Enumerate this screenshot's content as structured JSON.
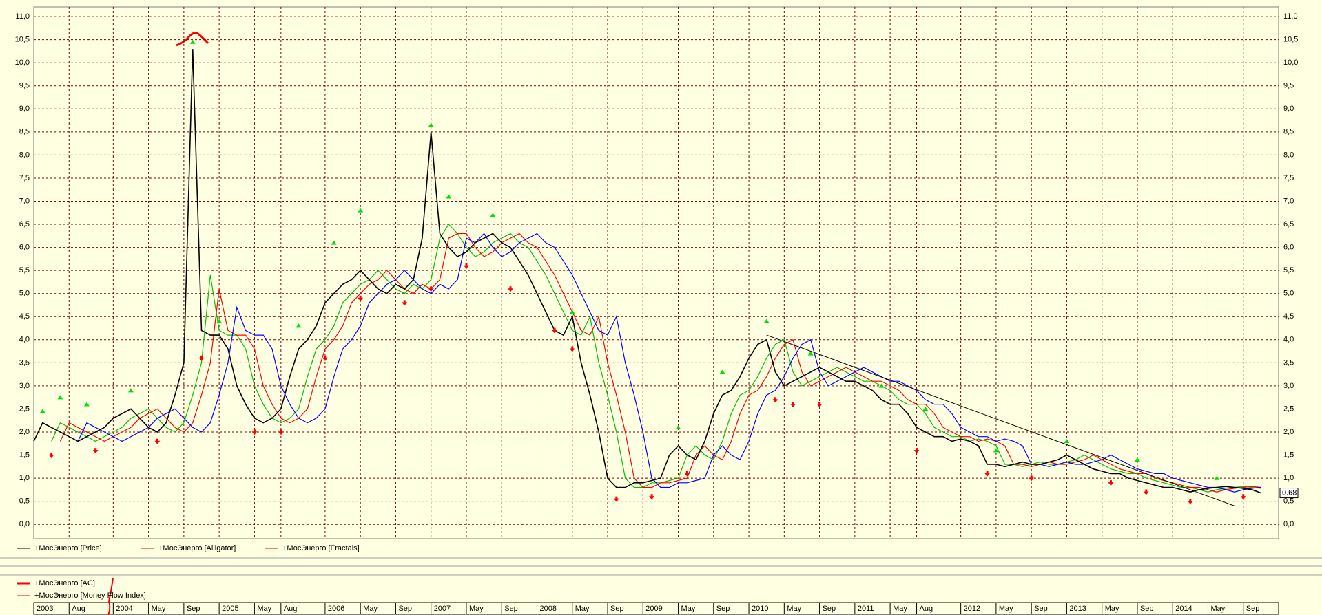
{
  "chart_data": {
    "type": "line",
    "x": [
      "2003-04",
      "2003-05",
      "2003-06",
      "2003-07",
      "2003-08",
      "2003-09",
      "2003-10",
      "2003-11",
      "2003-12",
      "2004-01",
      "2004-02",
      "2004-03",
      "2004-04",
      "2004-05",
      "2004-06",
      "2004-07",
      "2004-08",
      "2004-09",
      "2004-10",
      "2004-11",
      "2004-12",
      "2005-01",
      "2005-02",
      "2005-03",
      "2005-04",
      "2005-05",
      "2005-06",
      "2005-07",
      "2005-08",
      "2005-09",
      "2005-10",
      "2005-11",
      "2005-12",
      "2006-01",
      "2006-02",
      "2006-03",
      "2006-04",
      "2006-05",
      "2006-06",
      "2006-07",
      "2006-08",
      "2006-09",
      "2006-10",
      "2006-11",
      "2006-12",
      "2007-01",
      "2007-02",
      "2007-03",
      "2007-04",
      "2007-05",
      "2007-06",
      "2007-07",
      "2007-08",
      "2007-09",
      "2007-10",
      "2007-11",
      "2007-12",
      "2008-01",
      "2008-02",
      "2008-03",
      "2008-04",
      "2008-05",
      "2008-06",
      "2008-07",
      "2008-08",
      "2008-09",
      "2008-10",
      "2008-11",
      "2008-12",
      "2009-01",
      "2009-02",
      "2009-03",
      "2009-04",
      "2009-05",
      "2009-06",
      "2009-07",
      "2009-08",
      "2009-09",
      "2009-10",
      "2009-11",
      "2009-12",
      "2010-01",
      "2010-02",
      "2010-03",
      "2010-04",
      "2010-05",
      "2010-06",
      "2010-07",
      "2010-08",
      "2010-09",
      "2010-10",
      "2010-11",
      "2010-12",
      "2011-01",
      "2011-02",
      "2011-03",
      "2011-04",
      "2011-05",
      "2011-06",
      "2011-07",
      "2011-08",
      "2011-09",
      "2011-10",
      "2011-11",
      "2011-12",
      "2012-01",
      "2012-02",
      "2012-03",
      "2012-04",
      "2012-05",
      "2012-06",
      "2012-07",
      "2012-08",
      "2012-09",
      "2012-10",
      "2012-11",
      "2012-12",
      "2013-01",
      "2013-02",
      "2013-03",
      "2013-04",
      "2013-05",
      "2013-06",
      "2013-07",
      "2013-08",
      "2013-09",
      "2013-10",
      "2013-11",
      "2013-12",
      "2014-01",
      "2014-02",
      "2014-03",
      "2014-04",
      "2014-05",
      "2014-06",
      "2014-07",
      "2014-08",
      "2014-09",
      "2014-10",
      "2014-11"
    ],
    "series": [
      {
        "name": "+МосЭнерго [Price]",
        "color": "#000000",
        "values": [
          1.8,
          2.2,
          2.1,
          2.0,
          1.9,
          1.8,
          1.9,
          2.0,
          2.1,
          2.3,
          2.4,
          2.5,
          2.3,
          2.1,
          2.0,
          2.2,
          2.8,
          3.5,
          10.3,
          4.2,
          4.1,
          4.1,
          3.8,
          3.0,
          2.6,
          2.3,
          2.2,
          2.3,
          2.5,
          3.2,
          3.8,
          4.0,
          4.3,
          4.8,
          5.0,
          5.2,
          5.3,
          5.5,
          5.3,
          5.1,
          5.0,
          5.2,
          5.1,
          5.3,
          6.2,
          8.5,
          6.3,
          6.0,
          5.8,
          5.9,
          6.1,
          6.2,
          6.3,
          6.1,
          6.0,
          5.7,
          5.4,
          5.0,
          4.6,
          4.2,
          4.1,
          4.5,
          3.5,
          2.8,
          2.0,
          1.0,
          0.8,
          0.8,
          0.9,
          0.9,
          0.95,
          1.0,
          1.5,
          1.7,
          1.5,
          1.4,
          1.8,
          2.4,
          2.8,
          2.9,
          3.2,
          3.6,
          3.9,
          4.0,
          3.3,
          3.0,
          3.1,
          3.2,
          3.3,
          3.4,
          3.3,
          3.2,
          3.1,
          3.1,
          3.0,
          2.9,
          2.7,
          2.6,
          2.6,
          2.4,
          2.1,
          2.0,
          1.9,
          1.9,
          1.8,
          1.85,
          1.8,
          1.7,
          1.3,
          1.3,
          1.25,
          1.3,
          1.35,
          1.3,
          1.3,
          1.35,
          1.4,
          1.5,
          1.4,
          1.3,
          1.2,
          1.15,
          1.1,
          1.1,
          1.0,
          0.95,
          0.9,
          0.85,
          0.8,
          0.8,
          0.75,
          0.7,
          0.75,
          0.78,
          0.8,
          0.82,
          0.8,
          0.78,
          0.75,
          0.68
        ]
      },
      {
        "name": "+МосЭнерго [Alligator]",
        "color": "#ff0000",
        "lines": [
          {
            "color": "#00c000",
            "values": [
              null,
              null,
              1.8,
              2.2,
              2.1,
              2.0,
              1.9,
              1.8,
              1.9,
              2.0,
              2.1,
              2.3,
              2.4,
              2.5,
              2.3,
              2.1,
              2.0,
              2.2,
              2.8,
              3.5,
              5.4,
              4.2,
              4.1,
              4.1,
              3.8,
              3.0,
              2.6,
              2.3,
              2.2,
              2.3,
              2.5,
              3.2,
              3.8,
              4.0,
              4.3,
              4.8,
              5.0,
              5.2,
              5.3,
              5.5,
              5.3,
              5.1,
              5.0,
              5.2,
              5.1,
              5.3,
              6.2,
              6.5,
              6.3,
              6.0,
              5.8,
              5.9,
              6.1,
              6.2,
              6.3,
              6.1,
              6.0,
              5.7,
              5.4,
              5.0,
              4.6,
              4.2,
              4.1,
              4.5,
              3.5,
              2.8,
              2.0,
              1.0,
              0.8,
              0.8,
              0.9,
              0.9,
              0.95,
              1.0,
              1.5,
              1.7,
              1.5,
              1.4,
              1.8,
              2.4,
              2.8,
              2.9,
              3.2,
              3.6,
              3.9,
              4.0,
              3.3,
              3.0,
              3.1,
              3.2,
              3.3,
              3.4,
              3.3,
              3.2,
              3.1,
              3.1,
              3.0,
              2.9,
              2.7,
              2.6,
              2.6,
              2.4,
              2.1,
              2.0,
              1.9,
              1.9,
              1.8,
              1.85,
              1.8,
              1.7,
              1.3,
              1.3,
              1.25,
              1.3,
              1.35,
              1.3,
              1.3,
              1.35,
              1.4,
              1.5,
              1.4,
              1.3,
              1.2,
              1.15,
              1.1,
              1.1,
              1.0,
              0.95,
              0.9,
              0.85,
              0.8,
              0.8,
              0.75,
              0.7,
              0.75,
              0.78,
              0.8,
              0.82,
              0.8,
              0.78
            ]
          },
          {
            "color": "#ff0000",
            "values": [
              null,
              null,
              null,
              1.8,
              2.2,
              2.1,
              2.0,
              1.9,
              1.8,
              1.9,
              2.0,
              2.1,
              2.3,
              2.4,
              2.5,
              2.3,
              2.1,
              2.0,
              2.2,
              2.8,
              3.5,
              5.1,
              4.2,
              4.1,
              4.1,
              3.8,
              3.0,
              2.6,
              2.3,
              2.2,
              2.3,
              2.5,
              3.2,
              3.8,
              4.0,
              4.3,
              4.8,
              5.0,
              5.2,
              5.3,
              5.5,
              5.3,
              5.1,
              5.0,
              5.2,
              5.1,
              5.3,
              6.2,
              6.3,
              6.3,
              6.0,
              5.8,
              5.9,
              6.1,
              6.2,
              6.3,
              6.1,
              6.0,
              5.7,
              5.4,
              5.0,
              4.6,
              4.2,
              4.1,
              4.5,
              3.5,
              2.8,
              2.0,
              1.0,
              0.8,
              0.8,
              0.9,
              0.9,
              0.95,
              1.0,
              1.5,
              1.7,
              1.5,
              1.4,
              1.8,
              2.4,
              2.8,
              2.9,
              3.2,
              3.6,
              3.9,
              4.0,
              3.3,
              3.0,
              3.1,
              3.2,
              3.3,
              3.4,
              3.3,
              3.2,
              3.1,
              3.1,
              3.0,
              2.9,
              2.7,
              2.6,
              2.6,
              2.4,
              2.1,
              2.0,
              1.9,
              1.9,
              1.8,
              1.85,
              1.8,
              1.7,
              1.3,
              1.3,
              1.25,
              1.3,
              1.35,
              1.3,
              1.3,
              1.35,
              1.4,
              1.5,
              1.4,
              1.3,
              1.2,
              1.15,
              1.1,
              1.1,
              1.0,
              0.95,
              0.9,
              0.85,
              0.8,
              0.8,
              0.75,
              0.7,
              0.75,
              0.78,
              0.8,
              0.82,
              0.8
            ]
          },
          {
            "color": "#0000ff",
            "values": [
              null,
              null,
              null,
              null,
              null,
              1.8,
              2.2,
              2.1,
              2.0,
              1.9,
              1.8,
              1.9,
              2.0,
              2.1,
              2.3,
              2.4,
              2.5,
              2.3,
              2.1,
              2.0,
              2.2,
              2.8,
              3.5,
              4.7,
              4.2,
              4.1,
              4.1,
              3.8,
              3.0,
              2.6,
              2.3,
              2.2,
              2.3,
              2.5,
              3.2,
              3.8,
              4.0,
              4.3,
              4.8,
              5.0,
              5.2,
              5.3,
              5.5,
              5.3,
              5.1,
              5.0,
              5.2,
              5.1,
              5.3,
              6.2,
              6.1,
              6.3,
              6.0,
              5.8,
              5.9,
              6.1,
              6.2,
              6.3,
              6.1,
              6.0,
              5.7,
              5.4,
              5.0,
              4.6,
              4.2,
              4.1,
              4.5,
              3.5,
              2.8,
              2.0,
              1.0,
              0.8,
              0.8,
              0.9,
              0.9,
              0.95,
              1.0,
              1.5,
              1.7,
              1.5,
              1.4,
              1.8,
              2.4,
              2.8,
              2.9,
              3.2,
              3.6,
              3.9,
              4.0,
              3.3,
              3.0,
              3.1,
              3.2,
              3.3,
              3.4,
              3.3,
              3.2,
              3.1,
              3.1,
              3.0,
              2.9,
              2.7,
              2.6,
              2.6,
              2.4,
              2.1,
              2.0,
              1.9,
              1.9,
              1.8,
              1.85,
              1.8,
              1.7,
              1.3,
              1.3,
              1.25,
              1.3,
              1.35,
              1.3,
              1.3,
              1.35,
              1.4,
              1.5,
              1.4,
              1.3,
              1.2,
              1.15,
              1.1,
              1.1,
              1.0,
              0.95,
              0.9,
              0.85,
              0.8,
              0.8,
              0.75,
              0.7,
              0.75,
              0.78,
              0.8
            ]
          }
        ]
      },
      {
        "name": "+МосЭнерго [Fractals]",
        "color": "#ff0000",
        "up": {
          "color": "#00e000",
          "x": [
            "2003-05",
            "2003-07",
            "2003-10",
            "2004-03",
            "2004-10",
            "2005-01",
            "2005-10",
            "2006-02",
            "2006-05",
            "2007-01",
            "2007-03",
            "2007-08",
            "2008-05",
            "2009-05",
            "2009-10",
            "2010-03",
            "2010-08",
            "2011-04",
            "2011-09",
            "2012-05",
            "2013-01",
            "2013-09",
            "2014-06"
          ],
          "values": [
            2.35,
            2.65,
            2.5,
            2.8,
            10.35,
            4.3,
            4.2,
            6.0,
            6.7,
            8.55,
            7.0,
            6.6,
            4.5,
            2.0,
            3.2,
            4.3,
            3.6,
            2.9,
            2.4,
            1.5,
            1.7,
            1.3,
            0.9
          ]
        },
        "down": {
          "color": "#ff0000",
          "x": [
            "2003-06",
            "2003-11",
            "2004-06",
            "2004-11",
            "2005-05",
            "2005-08",
            "2006-01",
            "2006-05",
            "2006-10",
            "2007-01",
            "2007-05",
            "2007-10",
            "2008-03",
            "2008-05",
            "2008-10",
            "2009-02",
            "2009-06",
            "2010-04",
            "2010-06",
            "2010-09",
            "2011-08",
            "2012-04",
            "2012-09",
            "2013-06",
            "2013-10",
            "2014-03",
            "2014-09"
          ],
          "values": [
            1.6,
            1.7,
            1.9,
            3.7,
            2.1,
            2.1,
            3.7,
            5.0,
            4.9,
            5.2,
            5.7,
            5.2,
            4.3,
            3.9,
            0.65,
            0.7,
            1.2,
            2.8,
            2.7,
            2.7,
            1.7,
            1.2,
            1.1,
            1.0,
            0.8,
            0.6,
            0.7
          ]
        }
      }
    ],
    "trendline": {
      "color": "#000000",
      "x": [
        "2010-03",
        "2014-08"
      ],
      "values": [
        4.1,
        0.4
      ]
    },
    "last_value": "chart_data.series.0.values.139",
    "xlim": [
      "2003-04",
      "2015-01"
    ],
    "xticks": [
      {
        "value": "2003-04",
        "label": "2003"
      },
      {
        "value": "2003-08",
        "label": "Aug"
      },
      {
        "value": "2004-01",
        "label": "2004"
      },
      {
        "value": "2004-05",
        "label": "May"
      },
      {
        "value": "2004-09",
        "label": "Sep"
      },
      {
        "value": "2005-01",
        "label": "2005"
      },
      {
        "value": "2005-05",
        "label": "May"
      },
      {
        "value": "2005-08",
        "label": "Aug"
      },
      {
        "value": "2006-01",
        "label": "2006"
      },
      {
        "value": "2006-05",
        "label": "May"
      },
      {
        "value": "2006-09",
        "label": "Sep"
      },
      {
        "value": "2007-01",
        "label": "2007"
      },
      {
        "value": "2007-05",
        "label": "May"
      },
      {
        "value": "2007-09",
        "label": "Sep"
      },
      {
        "value": "2008-01",
        "label": "2008"
      },
      {
        "value": "2008-05",
        "label": "May"
      },
      {
        "value": "2008-09",
        "label": "Sep"
      },
      {
        "value": "2009-01",
        "label": "2009"
      },
      {
        "value": "2009-05",
        "label": "May"
      },
      {
        "value": "2009-09",
        "label": "Sep"
      },
      {
        "value": "2010-01",
        "label": "2010"
      },
      {
        "value": "2010-05",
        "label": "May"
      },
      {
        "value": "2010-09",
        "label": "Sep"
      },
      {
        "value": "2011-01",
        "label": "2011"
      },
      {
        "value": "2011-05",
        "label": "May"
      },
      {
        "value": "2011-08",
        "label": "Aug"
      },
      {
        "value": "2012-01",
        "label": "2012"
      },
      {
        "value": "2012-05",
        "label": "May"
      },
      {
        "value": "2012-09",
        "label": "Sep"
      },
      {
        "value": "2013-01",
        "label": "2013"
      },
      {
        "value": "2013-05",
        "label": "May"
      },
      {
        "value": "2013-09",
        "label": "Sep"
      },
      {
        "value": "2014-01",
        "label": "2014"
      },
      {
        "value": "2014-05",
        "label": "May"
      },
      {
        "value": "2014-09",
        "label": "Sep"
      }
    ],
    "ylim": [
      -0.31,
      11.21
    ],
    "yticks": [
      {
        "value": 0,
        "label": "0,0"
      },
      {
        "value": 0.5,
        "label": "0,5"
      },
      {
        "value": 1,
        "label": "1,0"
      },
      {
        "value": 1.5,
        "label": "1,5"
      },
      {
        "value": 2,
        "label": "2,0"
      },
      {
        "value": 2.5,
        "label": "2,5"
      },
      {
        "value": 3,
        "label": "3,0"
      },
      {
        "value": 3.5,
        "label": "3,5"
      },
      {
        "value": 4,
        "label": "4,0"
      },
      {
        "value": 4.5,
        "label": "4,5"
      },
      {
        "value": 5,
        "label": "5,0"
      },
      {
        "value": 5.5,
        "label": "5,5"
      },
      {
        "value": 6,
        "label": "6,0"
      },
      {
        "value": 6.5,
        "label": "6,5"
      },
      {
        "value": 7,
        "label": "7,0"
      },
      {
        "value": 7.5,
        "label": "7,5"
      },
      {
        "value": 8,
        "label": "8,0"
      },
      {
        "value": 8.5,
        "label": "8,5"
      },
      {
        "value": 9,
        "label": "9,0"
      },
      {
        "value": 9.5,
        "label": "9,5"
      },
      {
        "value": 10,
        "label": "10,0"
      },
      {
        "value": 10.5,
        "label": "10,5"
      },
      {
        "value": 11,
        "label": "11,0"
      }
    ],
    "grid": true,
    "lower_panel": {
      "series": [
        {
          "name": "+МосЭнерго [AC]",
          "color": "#ff0000"
        },
        {
          "name": "+МосЭнерго [Money Flow Index]",
          "color": "#ff0000"
        }
      ]
    }
  }
}
